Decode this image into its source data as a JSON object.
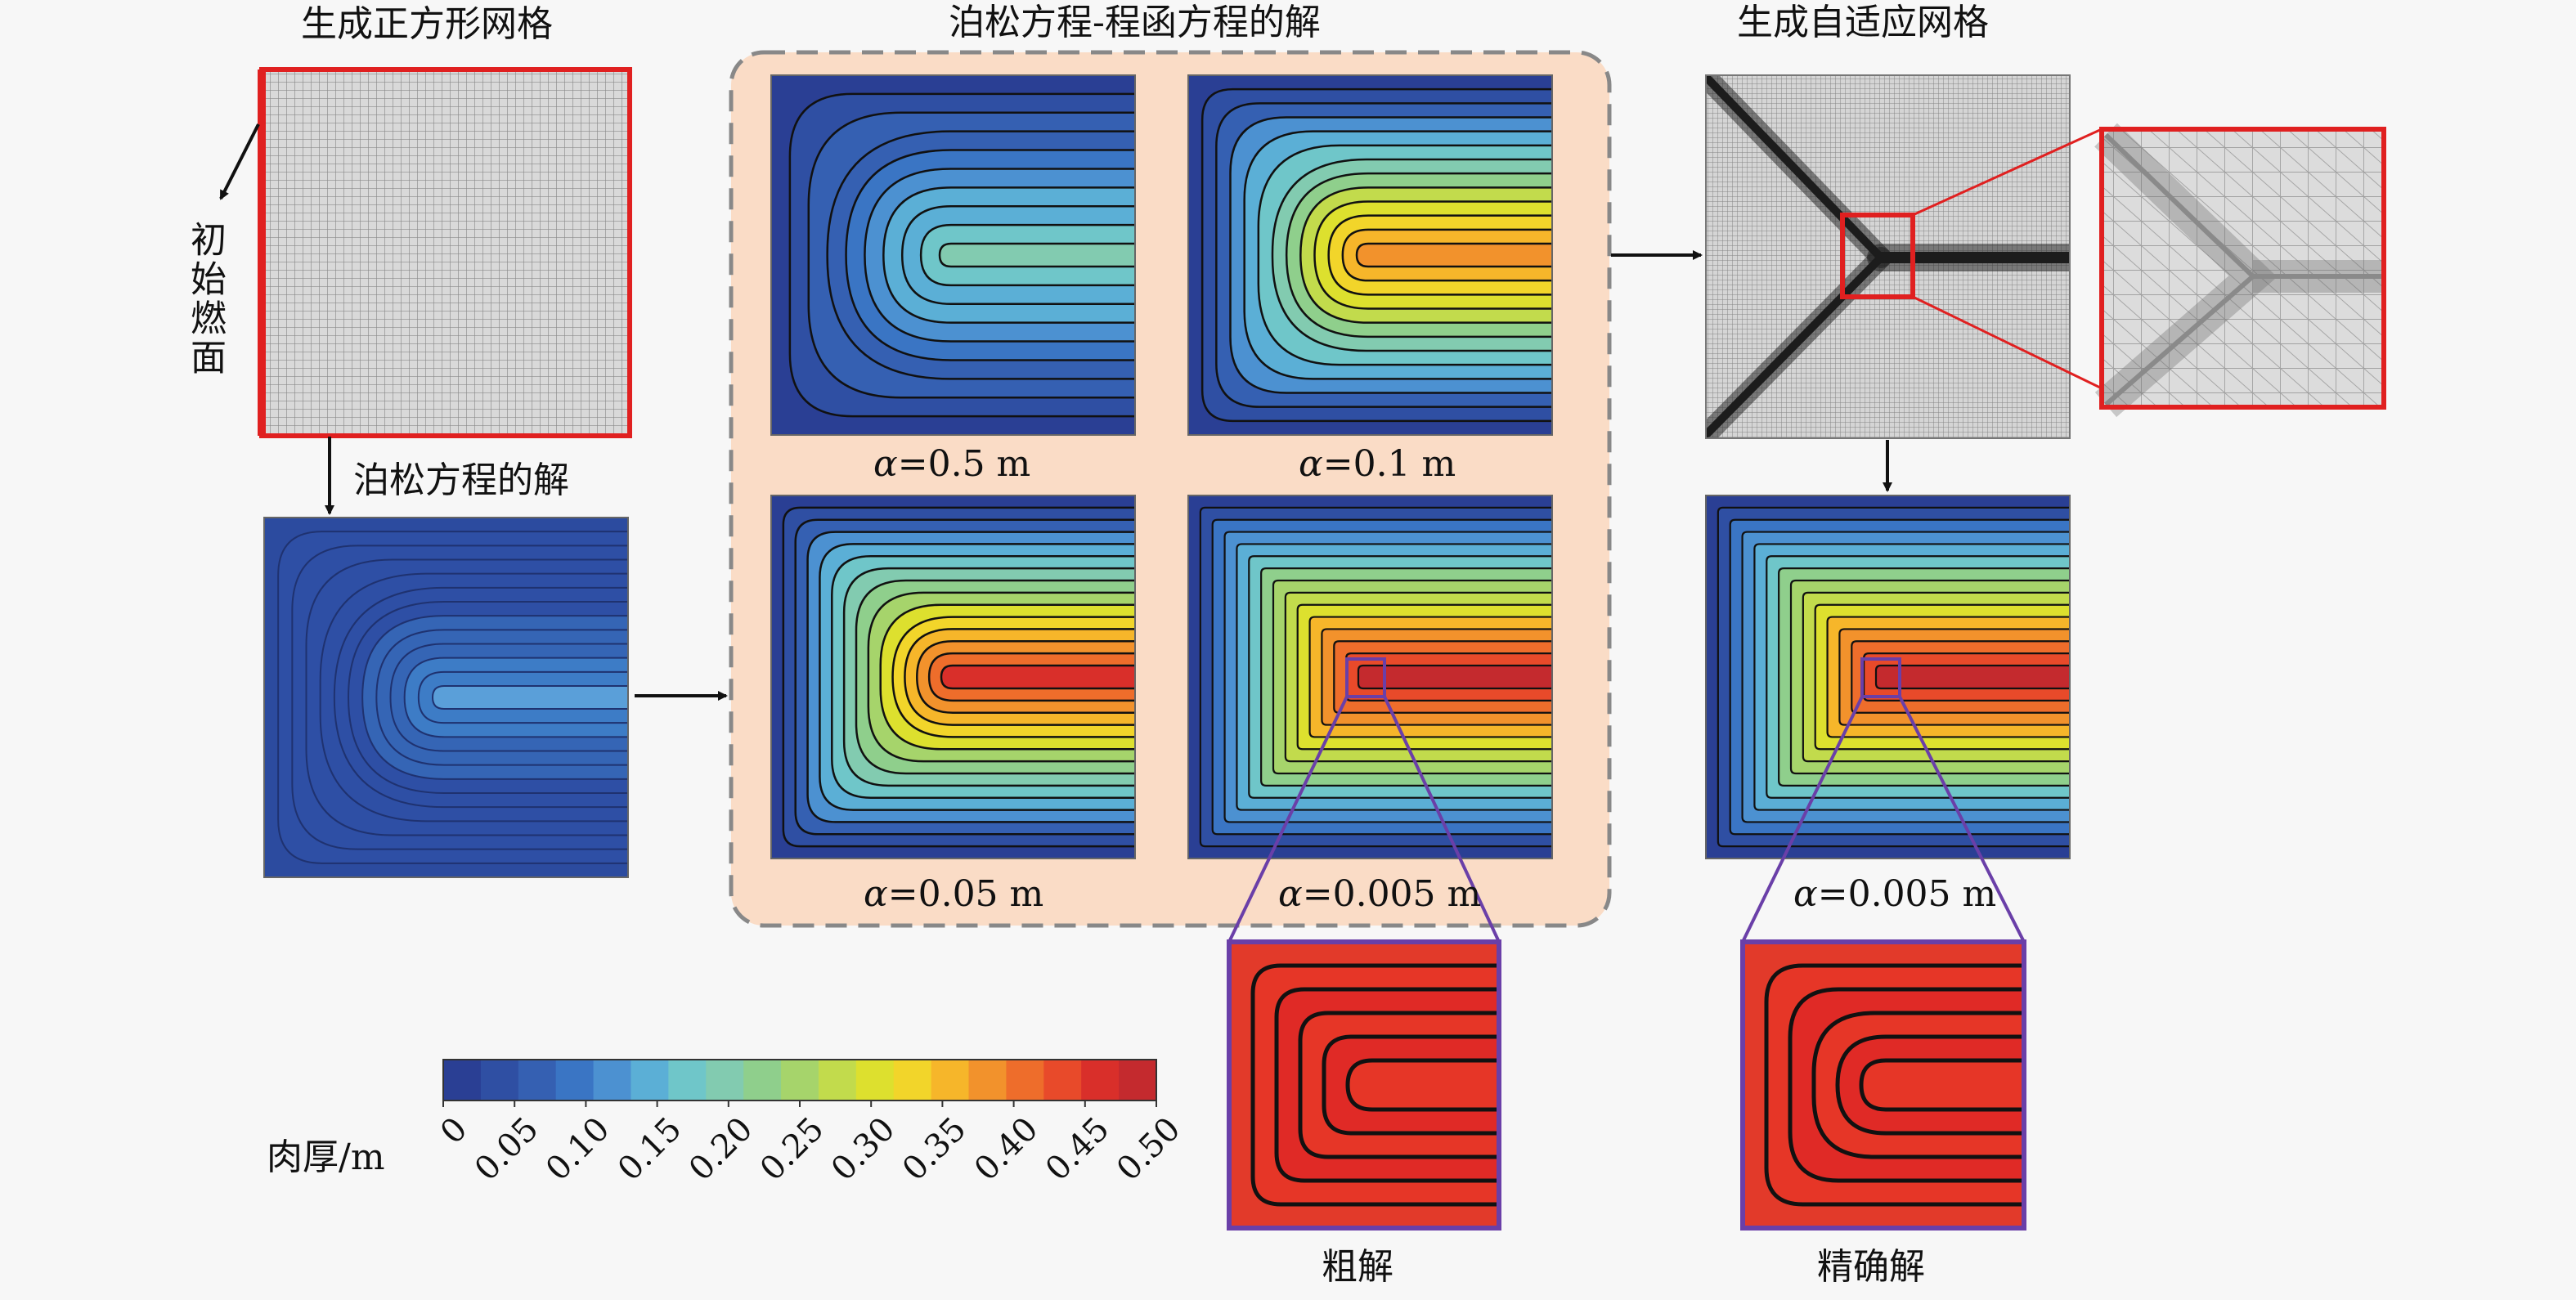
{
  "titles": {
    "square_mesh": "生成正方形网格",
    "poisson_stream": "泊松方程-程函方程的解",
    "adaptive_mesh": "生成自适应网格"
  },
  "labels": {
    "initial_burning_surface": "初始燃面",
    "poisson_solution": "泊松方程的解",
    "alpha_symbol": "α",
    "alpha_05": "=0.5 m",
    "alpha_01": "=0.1 m",
    "alpha_005": "=0.05 m",
    "alpha_0005": "=0.005 m",
    "alpha_0005_fine": "=0.005 m",
    "coarse_solution": "粗解",
    "accurate_solution": "精确解",
    "colorbar_title": "肉厚/m"
  },
  "colorbar": {
    "ticks": [
      "0",
      "0.05",
      "0.10",
      "0.15",
      "0.20",
      "0.25",
      "0.30",
      "0.35",
      "0.40",
      "0.45",
      "0.50"
    ],
    "min": 0,
    "max": 0.5,
    "colors": [
      "#2a3f94",
      "#2f4fa3",
      "#3560b2",
      "#3a75c4",
      "#4c91d1",
      "#5bafd6",
      "#6fc6c9",
      "#82cbb0",
      "#8fcf8c",
      "#a6d46b",
      "#c2db4c",
      "#dde02e",
      "#f2d52a",
      "#f6b62a",
      "#f2922c",
      "#ee6d2b",
      "#e84a2a",
      "#d92f2a",
      "#c42a2e"
    ],
    "highlight_color": "#e02020",
    "zoom_box_color": "#6a3fa8",
    "panel_bg": "#fadcc6"
  }
}
